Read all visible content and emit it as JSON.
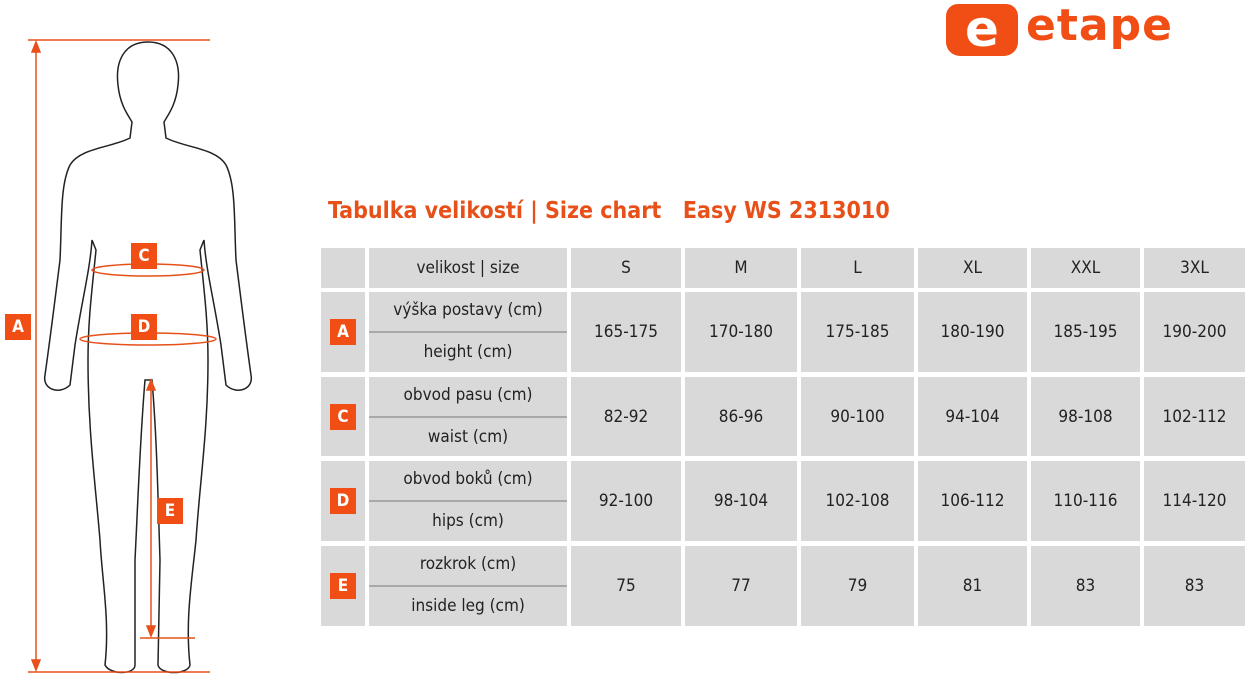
{
  "logo": {
    "text": "etape",
    "mark": "e"
  },
  "title": "Tabulka velikostí | Size chart   Easy WS 2313010",
  "accent": "#f04e14",
  "table": {
    "header_label": "velikost | size",
    "sizes": [
      "S",
      "M",
      "L",
      "XL",
      "XXL",
      "3XL"
    ],
    "rows": [
      {
        "badge": "A",
        "cz": "výška postavy (cm)",
        "en": "height (cm)",
        "values": [
          "165-175",
          "170-180",
          "175-185",
          "180-190",
          "185-195",
          "190-200"
        ]
      },
      {
        "badge": "C",
        "cz": "obvod pasu (cm)",
        "en": "waist (cm)",
        "values": [
          "82-92",
          "86-96",
          "90-100",
          "94-104",
          "98-108",
          "102-112"
        ]
      },
      {
        "badge": "D",
        "cz": "obvod boků (cm)",
        "en": "hips (cm)",
        "values": [
          "92-100",
          "98-104",
          "102-108",
          "106-112",
          "110-116",
          "114-120"
        ]
      },
      {
        "badge": "E",
        "cz": "rozkrok (cm)",
        "en": "inside leg (cm)",
        "values": [
          "75",
          "77",
          "79",
          "81",
          "83",
          "83"
        ]
      }
    ]
  },
  "figure": {
    "labels": {
      "A": "A",
      "C": "C",
      "D": "D",
      "E": "E"
    }
  }
}
